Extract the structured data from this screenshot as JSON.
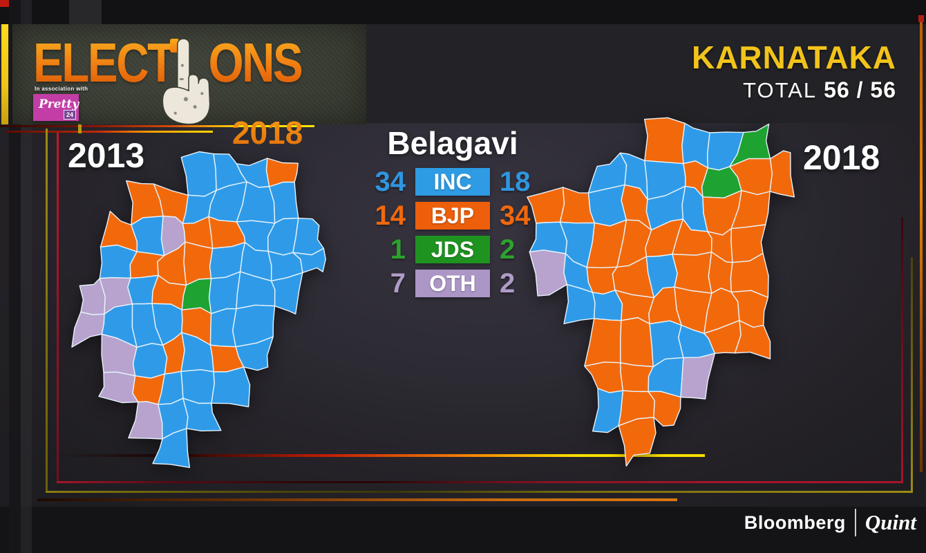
{
  "header": {
    "banner": {
      "title_part1": "ELECT",
      "title_part2": "ONS",
      "year": "2018",
      "association_label": "In association with",
      "sponsor_name": "Pretty",
      "sponsor_badge": "24"
    },
    "state": "KARNATAKA",
    "total_label": "TOTAL",
    "total_value": "56 / 56"
  },
  "region": {
    "title": "Belagavi"
  },
  "panels": {
    "left_year": "2013",
    "right_year": "2018"
  },
  "legend": {
    "rows": [
      {
        "party": "INC",
        "left": "34",
        "right": "18",
        "color": "#2f96e0",
        "box": "#2e9be4"
      },
      {
        "party": "BJP",
        "left": "14",
        "right": "34",
        "color": "#f1680e",
        "box": "#ed5f0a"
      },
      {
        "party": "JDS",
        "left": "1",
        "right": "2",
        "color": "#2ca32c",
        "box": "#1f9320"
      },
      {
        "party": "OTH",
        "left": "7",
        "right": "2",
        "color": "#b09cc8",
        "box": "#ab96c6"
      }
    ]
  },
  "chart_data": {
    "type": "choropleth-comparison",
    "region": "Belagavi",
    "total_seats": 56,
    "categories": [
      "INC",
      "BJP",
      "JDS",
      "OTH"
    ],
    "series": [
      {
        "name": "2013",
        "values": [
          34,
          14,
          1,
          7
        ]
      },
      {
        "name": "2018",
        "values": [
          18,
          34,
          2,
          2
        ]
      }
    ]
  },
  "maps": {
    "party_colors": {
      "B": "#2f9be8",
      "O": "#f2690c",
      "G": "#1ea232",
      "P": "#b7a3ce"
    },
    "party_letters": {
      "B": "INC",
      "O": "BJP",
      "G": "JDS",
      "P": "OTH"
    },
    "left": {
      "year": "2013",
      "rows": [
        "....BBBO.",
        "..OOBBBB.",
        ".OBPOOBBB",
        ".BOOOBBBB",
        "PPBOGBBB.",
        "PBBBOBB..",
        ".PBOBOB..",
        ".POBBB...",
        "..PBB....",
        "...B....."
      ]
    },
    "right": {
      "year": "2018",
      "rows": [
        "....OBBG.",
        "..BBBOGOO",
        "OOBOBBOO.",
        "BBOOOOOO.",
        "PBOOBOOO.",
        ".BBOOOOO.",
        "..OOBBOO.",
        "..OOBP...",
        "..BOO....",
        "...O....."
      ]
    }
  },
  "footer": {
    "brand_left": "Bloomberg",
    "brand_right": "Quint"
  },
  "colors": {
    "accent_yellow": "#f2c31b",
    "banner_orange": "#ef7d12",
    "frame_red": "#a8152a",
    "frame_olive": "#9c8c14",
    "frame_orange": "#e88408"
  }
}
